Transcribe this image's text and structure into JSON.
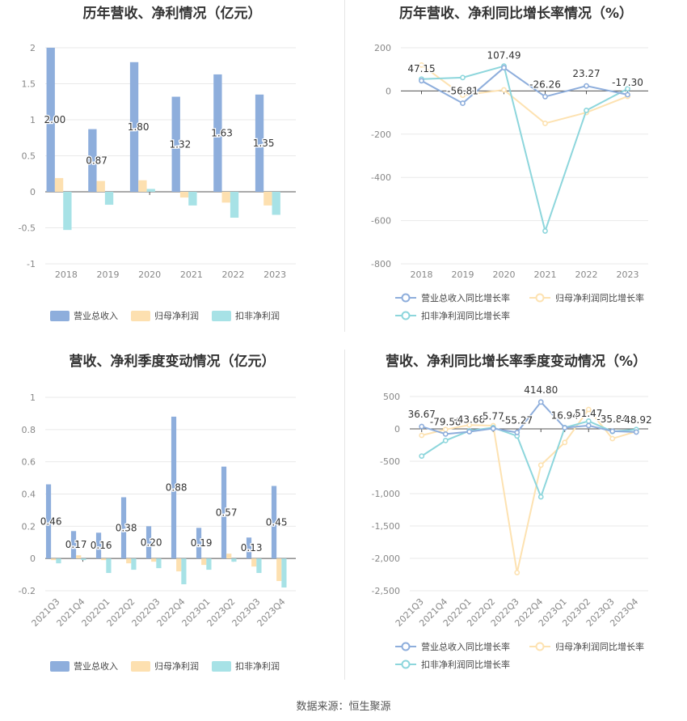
{
  "footer": {
    "source": "数据来源：恒生聚源"
  },
  "colors": {
    "revenue": "#8eaedc",
    "net_profit": "#fde0b0",
    "deducted_profit": "#a7e2e6",
    "revenue_line": "#8eaedc",
    "net_line": "#fde2b1",
    "deducted_line": "#8dd6dc"
  },
  "chart_data": [
    {
      "id": "annual_bar",
      "type": "bar",
      "title": "历年营收、净利情况（亿元）",
      "categories": [
        "2018",
        "2019",
        "2020",
        "2021",
        "2022",
        "2023"
      ],
      "series": [
        {
          "name": "营业总收入",
          "values": [
            2.0,
            0.87,
            1.8,
            1.32,
            1.63,
            1.35
          ],
          "labels": [
            "2.00",
            "0.87",
            "1.80",
            "1.32",
            "1.63",
            "1.35"
          ]
        },
        {
          "name": "归母净利润",
          "values": [
            0.19,
            0.15,
            0.16,
            -0.08,
            -0.15,
            -0.19
          ]
        },
        {
          "name": "扣非净利润",
          "values": [
            -0.53,
            -0.18,
            0.04,
            -0.19,
            -0.36,
            -0.32
          ]
        }
      ],
      "yticks": [
        "2",
        "1.5",
        "1",
        "0.5",
        "0",
        "-0.5",
        "-1"
      ],
      "ylim": [
        -1,
        2
      ],
      "legend": "bottom"
    },
    {
      "id": "annual_line",
      "type": "line",
      "title": "历年营收、净利同比增长率情况（%）",
      "categories": [
        "2018",
        "2019",
        "2020",
        "2021",
        "2022",
        "2023"
      ],
      "series": [
        {
          "name": "营业总收入同比增长率",
          "values": [
            47.15,
            -56.81,
            107.49,
            -26.26,
            23.27,
            -17.3
          ],
          "labels": [
            "47.15",
            "-56.81",
            "107.49",
            "-26.26",
            "23.27",
            "-17.30"
          ]
        },
        {
          "name": "归母净利润同比增长率",
          "values": [
            120,
            -20,
            5,
            -150,
            -100,
            -25
          ]
        },
        {
          "name": "扣非净利润同比增长率",
          "values": [
            55,
            62,
            115,
            -648,
            -90,
            10
          ]
        }
      ],
      "yticks": [
        "200",
        "0",
        "-200",
        "-400",
        "-600",
        "-800"
      ],
      "ylim": [
        -800,
        200
      ],
      "legend": "bottom"
    },
    {
      "id": "quarter_bar",
      "type": "bar",
      "title": "营收、净利季度变动情况（亿元）",
      "categories": [
        "2021Q3",
        "2021Q4",
        "2022Q1",
        "2022Q2",
        "2022Q3",
        "2022Q4",
        "2023Q1",
        "2023Q2",
        "2023Q3",
        "2023Q4"
      ],
      "series": [
        {
          "name": "营业总收入",
          "values": [
            0.46,
            0.17,
            0.16,
            0.38,
            0.2,
            0.88,
            0.19,
            0.57,
            0.13,
            0.45
          ],
          "labels": [
            "0.46",
            "0.17",
            "0.16",
            "0.38",
            "0.20",
            "0.88",
            "0.19",
            "0.57",
            "0.13",
            "0.45"
          ]
        },
        {
          "name": "归母净利润",
          "values": [
            -0.01,
            0.02,
            -0.01,
            -0.03,
            -0.02,
            -0.08,
            -0.04,
            0.03,
            -0.05,
            -0.14
          ]
        },
        {
          "name": "扣非净利润",
          "values": [
            -0.03,
            -0.01,
            -0.09,
            -0.07,
            -0.06,
            -0.16,
            -0.07,
            -0.02,
            -0.09,
            -0.18
          ]
        }
      ],
      "yticks": [
        "1",
        "0.8",
        "0.6",
        "0.4",
        "0.2",
        "0",
        "-0.2"
      ],
      "ylim": [
        -0.2,
        1
      ],
      "legend": "bottom"
    },
    {
      "id": "quarter_line",
      "type": "line",
      "title": "营收、净利同比增长率季度变动情况（%）",
      "categories": [
        "2021Q3",
        "2021Q4",
        "2022Q1",
        "2022Q2",
        "2022Q3",
        "2022Q4",
        "2023Q1",
        "2023Q2",
        "2023Q3",
        "2023Q4"
      ],
      "series": [
        {
          "name": "营业总收入同比增长率",
          "values": [
            36.67,
            -79.58,
            -43.68,
            5.77,
            -55.27,
            414.8,
            16.94,
            51.47,
            -35.84,
            -48.92
          ],
          "labels": [
            "36.67",
            "-79.58",
            "-43.68",
            "5.77",
            "-55.27",
            "414.80",
            "16.94",
            "51.47",
            "-35.84",
            "-48.92"
          ]
        },
        {
          "name": "归母净利润同比增长率",
          "values": [
            -100,
            -10,
            60,
            50,
            -2220,
            -560,
            -210,
            300,
            -150,
            -40
          ]
        },
        {
          "name": "扣非净利润同比增长率",
          "values": [
            -420,
            -180,
            -30,
            20,
            -110,
            -1050,
            20,
            120,
            -40,
            -10
          ]
        }
      ],
      "yticks": [
        "500",
        "0",
        "-500",
        "-1,000",
        "-1,500",
        "-2,000",
        "-2,500"
      ],
      "ylim": [
        -2500,
        500
      ],
      "legend": "bottom"
    }
  ]
}
